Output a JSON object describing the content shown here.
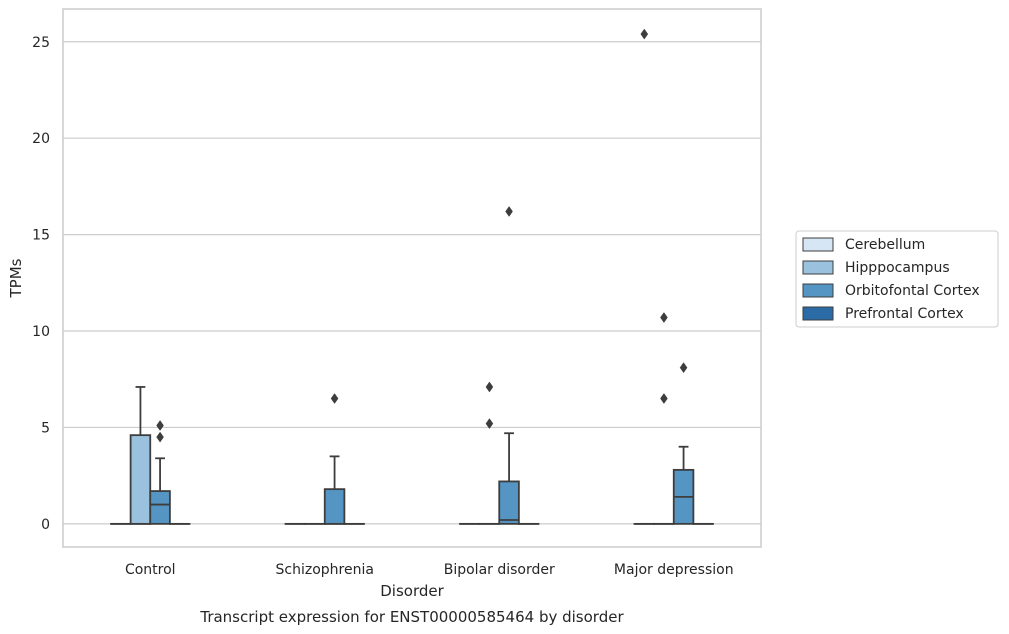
{
  "chart_data": {
    "type": "box",
    "caption": "Transcript expression for ENST00000585464 by disorder",
    "xlabel": "Disorder",
    "ylabel": "TPMs",
    "ylim": [
      -1.2,
      26.7
    ],
    "yticks": [
      0,
      5,
      10,
      15,
      20,
      25
    ],
    "grid": "horizontal",
    "legend_position": "right",
    "categories": [
      "Control",
      "Schizophrenia",
      "Bipolar disorder",
      "Major depression"
    ],
    "series": [
      {
        "name": "Cerebellum",
        "color": "#d6e6f4",
        "boxes": [
          {
            "q1": 0,
            "median": 0,
            "q3": 0,
            "whisker_low": 0,
            "whisker_high": 0,
            "outliers": []
          },
          {
            "q1": 0,
            "median": 0,
            "q3": 0,
            "whisker_low": 0,
            "whisker_high": 0,
            "outliers": []
          },
          {
            "q1": 0,
            "median": 0,
            "q3": 0,
            "whisker_low": 0,
            "whisker_high": 0,
            "outliers": []
          },
          {
            "q1": 0,
            "median": 0,
            "q3": 0,
            "whisker_low": 0,
            "whisker_high": 0,
            "outliers": [
              25.4
            ]
          }
        ]
      },
      {
        "name": "Hipppocampus",
        "color": "#9ac1dd",
        "boxes": [
          {
            "q1": 0,
            "median": 0,
            "q3": 4.6,
            "whisker_low": 0,
            "whisker_high": 7.1,
            "outliers": []
          },
          {
            "q1": 0,
            "median": 0,
            "q3": 0,
            "whisker_low": 0,
            "whisker_high": 0,
            "outliers": []
          },
          {
            "q1": 0,
            "median": 0,
            "q3": 0,
            "whisker_low": 0,
            "whisker_high": 0,
            "outliers": [
              5.2,
              7.1
            ]
          },
          {
            "q1": 0,
            "median": 0,
            "q3": 0,
            "whisker_low": 0,
            "whisker_high": 0,
            "outliers": [
              6.5,
              10.7
            ]
          }
        ]
      },
      {
        "name": "Orbitofontal Cortex",
        "color": "#5595c4",
        "boxes": [
          {
            "q1": 0,
            "median": 1.0,
            "q3": 1.7,
            "whisker_low": 0,
            "whisker_high": 3.4,
            "outliers": [
              4.5,
              5.1
            ]
          },
          {
            "q1": 0,
            "median": 0,
            "q3": 1.8,
            "whisker_low": 0,
            "whisker_high": 3.5,
            "outliers": [
              6.5
            ]
          },
          {
            "q1": 0,
            "median": 0.2,
            "q3": 2.2,
            "whisker_low": 0,
            "whisker_high": 4.7,
            "outliers": [
              16.2
            ]
          },
          {
            "q1": 0,
            "median": 1.4,
            "q3": 2.8,
            "whisker_low": 0,
            "whisker_high": 4.0,
            "outliers": [
              8.1
            ]
          }
        ]
      },
      {
        "name": "Prefrontal Cortex",
        "color": "#2b6ba6",
        "boxes": [
          {
            "q1": 0,
            "median": 0,
            "q3": 0,
            "whisker_low": 0,
            "whisker_high": 0,
            "outliers": []
          },
          {
            "q1": 0,
            "median": 0,
            "q3": 0,
            "whisker_low": 0,
            "whisker_high": 0,
            "outliers": []
          },
          {
            "q1": 0,
            "median": 0,
            "q3": 0,
            "whisker_low": 0,
            "whisker_high": 0,
            "outliers": []
          },
          {
            "q1": 0,
            "median": 0,
            "q3": 0,
            "whisker_low": 0,
            "whisker_high": 0,
            "outliers": []
          }
        ]
      }
    ]
  }
}
